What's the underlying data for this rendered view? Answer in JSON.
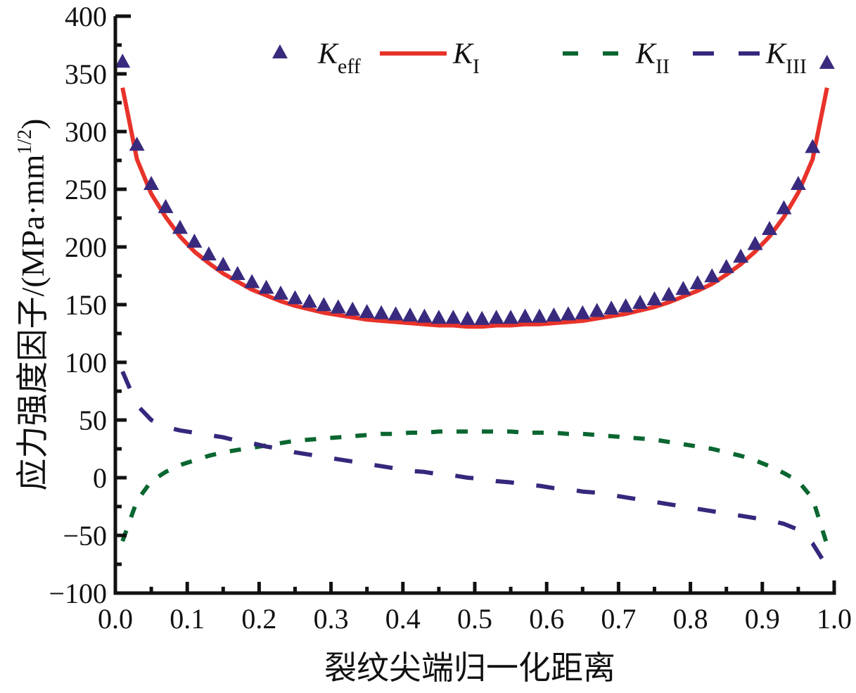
{
  "chart_data": {
    "type": "line",
    "title": "",
    "xlabel": "裂纹尖端归一化距离",
    "ylabel": "应力强度因子/(MPa·mm",
    "ylabel_superscript": "1/2",
    "ylabel_close": ")",
    "xlim": [
      0.0,
      1.0
    ],
    "ylim": [
      -100,
      400
    ],
    "x_ticks": [
      "0.0",
      "0.1",
      "0.2",
      "0.3",
      "0.4",
      "0.5",
      "0.6",
      "0.7",
      "0.8",
      "0.9",
      "1.0"
    ],
    "x_tick_values": [
      0.0,
      0.1,
      0.2,
      0.3,
      0.4,
      0.5,
      0.6,
      0.7,
      0.8,
      0.9,
      1.0
    ],
    "y_ticks": [
      "400",
      "350",
      "300",
      "250",
      "200",
      "150",
      "100",
      "50",
      "0",
      "−50",
      "−100"
    ],
    "y_tick_values": [
      400,
      350,
      300,
      250,
      200,
      150,
      100,
      50,
      0,
      -50,
      -100
    ],
    "grid": false,
    "legend_position": "top",
    "series": [
      {
        "name": "K_eff",
        "label_main": "K",
        "label_sub": "eff",
        "style": "markers-triangle",
        "color": "#3a2a7e",
        "x": [
          0.01,
          0.03,
          0.05,
          0.07,
          0.09,
          0.11,
          0.13,
          0.15,
          0.17,
          0.19,
          0.21,
          0.23,
          0.25,
          0.27,
          0.29,
          0.31,
          0.33,
          0.35,
          0.37,
          0.39,
          0.41,
          0.43,
          0.45,
          0.47,
          0.49,
          0.51,
          0.53,
          0.55,
          0.57,
          0.59,
          0.61,
          0.63,
          0.65,
          0.67,
          0.69,
          0.71,
          0.73,
          0.75,
          0.77,
          0.79,
          0.81,
          0.83,
          0.85,
          0.87,
          0.89,
          0.91,
          0.93,
          0.95,
          0.97,
          0.99
        ],
        "values": [
          360,
          288,
          254,
          234,
          216,
          204,
          193,
          184,
          176,
          169,
          164,
          159,
          155,
          152,
          149,
          147,
          145,
          143,
          142,
          141,
          140,
          139,
          138,
          138,
          137,
          137,
          138,
          138,
          139,
          139,
          140,
          141,
          142,
          144,
          146,
          148,
          151,
          154,
          158,
          163,
          168,
          174,
          182,
          191,
          202,
          215,
          233,
          254,
          286,
          359
        ]
      },
      {
        "name": "K_I",
        "label_main": "K",
        "label_sub": "I",
        "style": "solid",
        "color": "#e8332a",
        "x": [
          0.01,
          0.03,
          0.05,
          0.07,
          0.09,
          0.11,
          0.13,
          0.15,
          0.17,
          0.19,
          0.21,
          0.23,
          0.25,
          0.27,
          0.29,
          0.31,
          0.33,
          0.35,
          0.37,
          0.39,
          0.41,
          0.43,
          0.45,
          0.47,
          0.49,
          0.51,
          0.53,
          0.55,
          0.57,
          0.59,
          0.61,
          0.63,
          0.65,
          0.67,
          0.69,
          0.71,
          0.73,
          0.75,
          0.77,
          0.79,
          0.81,
          0.83,
          0.85,
          0.87,
          0.89,
          0.91,
          0.93,
          0.95,
          0.97,
          0.99
        ],
        "values": [
          338,
          276,
          246,
          226,
          209,
          196,
          186,
          177,
          170,
          163,
          158,
          153,
          149,
          146,
          143,
          141,
          139,
          137,
          136,
          135,
          134,
          133,
          132,
          132,
          131,
          131,
          132,
          132,
          133,
          133,
          134,
          135,
          136,
          138,
          140,
          142,
          145,
          148,
          152,
          157,
          162,
          168,
          176,
          185,
          196,
          209,
          226,
          247,
          276,
          338
        ]
      },
      {
        "name": "K_II",
        "label_main": "K",
        "label_sub": "II",
        "style": "short-dash",
        "color": "#0a6630",
        "x": [
          0.01,
          0.03,
          0.05,
          0.07,
          0.09,
          0.11,
          0.13,
          0.15,
          0.17,
          0.19,
          0.21,
          0.23,
          0.25,
          0.27,
          0.29,
          0.31,
          0.33,
          0.35,
          0.37,
          0.39,
          0.41,
          0.43,
          0.45,
          0.47,
          0.49,
          0.51,
          0.53,
          0.55,
          0.57,
          0.59,
          0.61,
          0.63,
          0.65,
          0.67,
          0.69,
          0.71,
          0.73,
          0.75,
          0.77,
          0.79,
          0.81,
          0.83,
          0.85,
          0.87,
          0.89,
          0.91,
          0.93,
          0.95,
          0.97,
          0.99
        ],
        "values": [
          -55,
          -20,
          -3,
          5,
          11,
          15,
          19,
          22,
          24,
          26,
          28,
          30,
          32,
          33,
          34,
          35,
          36,
          37,
          38,
          38,
          39,
          39,
          40,
          40,
          40,
          40,
          40,
          40,
          39,
          39,
          39,
          38,
          38,
          37,
          36,
          35,
          34,
          33,
          31,
          29,
          27,
          25,
          22,
          19,
          15,
          10,
          4,
          -3,
          -18,
          -58
        ]
      },
      {
        "name": "K_III",
        "label_main": "K",
        "label_sub": "III",
        "style": "long-dash",
        "color": "#35287c",
        "x": [
          0.01,
          0.03,
          0.05,
          0.07,
          0.09,
          0.11,
          0.13,
          0.15,
          0.17,
          0.19,
          0.21,
          0.23,
          0.25,
          0.27,
          0.29,
          0.31,
          0.33,
          0.35,
          0.37,
          0.39,
          0.41,
          0.43,
          0.45,
          0.47,
          0.49,
          0.51,
          0.53,
          0.55,
          0.57,
          0.59,
          0.61,
          0.63,
          0.65,
          0.67,
          0.69,
          0.71,
          0.73,
          0.75,
          0.77,
          0.79,
          0.81,
          0.83,
          0.85,
          0.87,
          0.89,
          0.91,
          0.93,
          0.95,
          0.97,
          0.99
        ],
        "values": [
          92,
          63,
          50,
          44,
          41,
          39,
          37,
          35,
          32,
          30,
          27,
          25,
          22,
          20,
          18,
          16,
          14,
          12,
          10,
          8,
          6,
          5,
          3,
          2,
          0,
          -1,
          -3,
          -4,
          -6,
          -7,
          -9,
          -10,
          -12,
          -13,
          -15,
          -17,
          -19,
          -21,
          -23,
          -25,
          -27,
          -29,
          -31,
          -33,
          -35,
          -37,
          -40,
          -45,
          -57,
          -77
        ]
      }
    ]
  }
}
